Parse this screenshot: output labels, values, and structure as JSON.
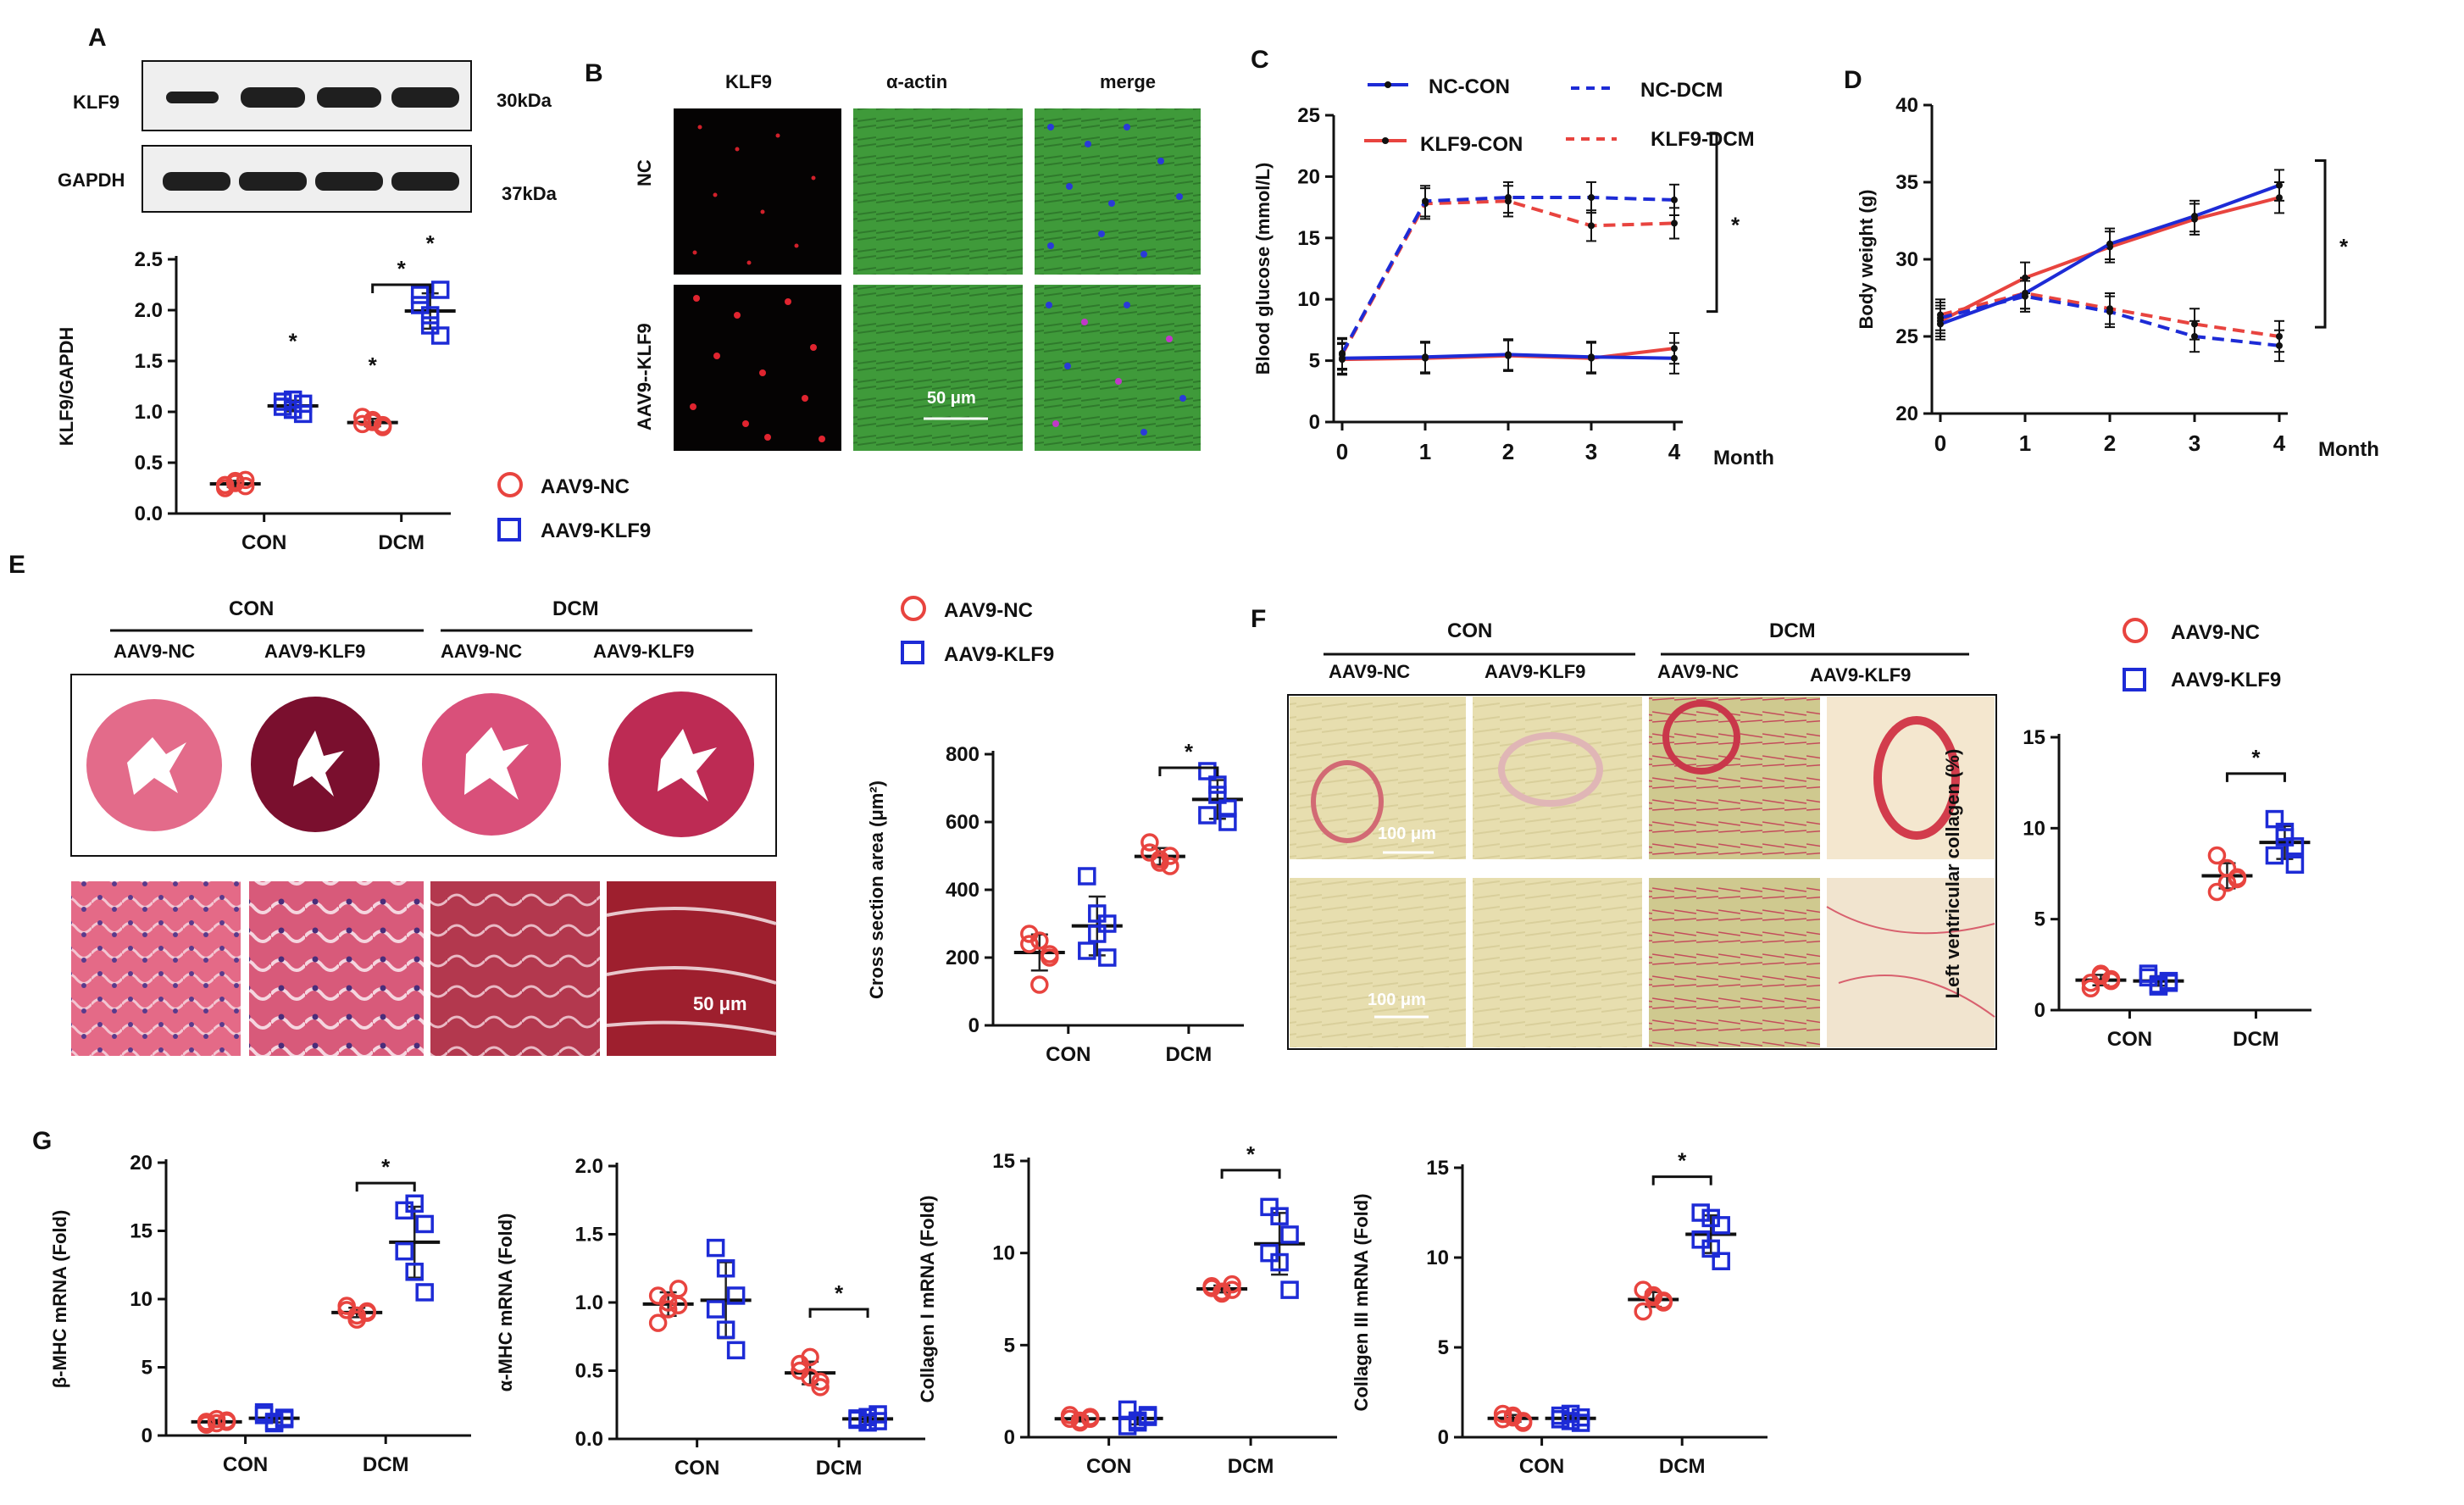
{
  "figure": {
    "colors": {
      "nc": "#e8443f",
      "klf9": "#1d2bd6",
      "axis": "#111111",
      "he_pink": "#e05c7c",
      "he_dark": "#8a1233",
      "if_green": "#3c9c3a",
      "sr_bg": "#e8dfae",
      "sr_red": "#d23c4c"
    },
    "panel_letters": {
      "a": "A",
      "b": "B",
      "c": "C",
      "d": "D",
      "e": "E",
      "f": "F",
      "g": "G"
    },
    "legend": {
      "nc": "AAV9-NC",
      "klf9": "AAV9-KLF9"
    },
    "star": "*",
    "blot": {
      "rows": [
        {
          "label": "KLF9",
          "kda": "30kDa"
        },
        {
          "label": "GAPDH",
          "kda": "37kDa"
        }
      ]
    },
    "if_panel": {
      "cols": [
        "KLF9",
        "α-actin",
        "merge"
      ],
      "rows": [
        "NC",
        "AAV9--KLF9"
      ],
      "scale": "50 μm"
    },
    "he_panel": {
      "group_labels": [
        "CON",
        "DCM"
      ],
      "sub_labels": [
        "AAV9-NC",
        "AAV9-KLF9",
        "AAV9-NC",
        "AAV9-KLF9"
      ],
      "scale": "50 μm"
    },
    "sr_panel": {
      "group_labels": [
        "CON",
        "DCM"
      ],
      "sub_labels": [
        "AAV9-NC",
        "AAV9-KLF9",
        "AAV9-NC",
        "AAV9-KLF9"
      ],
      "scale": "100 μm"
    }
  },
  "chart_data": [
    {
      "id": "A",
      "type": "scatter",
      "ylabel": "KLF9/GAPDH",
      "ylim": [
        0,
        2.5
      ],
      "yticks": [
        "0.0",
        "0.5",
        "1.0",
        "1.5",
        "2.0",
        "2.5"
      ],
      "categories": [
        "CON",
        "DCM"
      ],
      "series": [
        {
          "name": "AAV9-NC",
          "values": [
            [
              0.25,
              0.3,
              0.33,
              0.28,
              0.32,
              0.27
            ],
            [
              0.88,
              0.92,
              0.85,
              0.95,
              0.9,
              0.87
            ]
          ]
        },
        {
          "name": "AAV9-KLF9",
          "values": [
            [
              1.05,
              1.12,
              0.98,
              1.1,
              1.02,
              1.08
            ],
            [
              2.15,
              1.95,
              1.75,
              2.05,
              1.85,
              2.2
            ]
          ]
        }
      ]
    },
    {
      "id": "C",
      "type": "line",
      "ylabel": "Blood glucose (mmol/L)",
      "xlabel": "Month",
      "x": [
        0,
        1,
        2,
        3,
        4
      ],
      "ylim": [
        0,
        25
      ],
      "yticks": [
        "0",
        "5",
        "10",
        "15",
        "20",
        "25"
      ],
      "series": [
        {
          "name": "NC-CON",
          "values": [
            5.2,
            5.3,
            5.5,
            5.3,
            5.2
          ]
        },
        {
          "name": "NC-DCM",
          "values": [
            5.6,
            18.0,
            18.3,
            18.3,
            18.1
          ]
        },
        {
          "name": "KLF9-CON",
          "values": [
            5.1,
            5.2,
            5.4,
            5.2,
            6.0
          ]
        },
        {
          "name": "KLF9-DCM",
          "values": [
            5.5,
            17.8,
            18.0,
            16.0,
            16.2
          ]
        }
      ]
    },
    {
      "id": "D",
      "type": "line",
      "ylabel": "Body weight (g)",
      "xlabel": "Month",
      "x": [
        0,
        1,
        2,
        3,
        4
      ],
      "ylim": [
        20,
        40
      ],
      "yticks": [
        "20",
        "25",
        "30",
        "35",
        "40"
      ],
      "series": [
        {
          "name": "NC-CON",
          "values": [
            25.8,
            27.8,
            31.0,
            32.8,
            34.8
          ]
        },
        {
          "name": "NC-DCM",
          "values": [
            26.2,
            27.6,
            26.6,
            25.0,
            24.4
          ]
        },
        {
          "name": "KLF9-CON",
          "values": [
            26.0,
            28.8,
            30.8,
            32.6,
            34.0
          ]
        },
        {
          "name": "KLF9-DCM",
          "values": [
            26.4,
            27.8,
            26.8,
            25.8,
            25.0
          ]
        }
      ]
    },
    {
      "id": "E",
      "type": "scatter",
      "ylabel": "Cross section area (μm²)",
      "ylim": [
        0,
        800
      ],
      "yticks": [
        "0",
        "200",
        "400",
        "600",
        "800"
      ],
      "categories": [
        "CON",
        "DCM"
      ],
      "series": [
        {
          "name": "AAV9-NC",
          "values": [
            [
              270,
              250,
              200,
              240,
              120,
              210
            ],
            [
              540,
              490,
              470,
              510,
              480,
              500
            ]
          ]
        },
        {
          "name": "AAV9-KLF9",
          "values": [
            [
              440,
              330,
              300,
              220,
              270,
              200
            ],
            [
              750,
              710,
              640,
              620,
              680,
              600
            ]
          ]
        }
      ]
    },
    {
      "id": "F",
      "type": "scatter",
      "ylabel": "Left ventricular collagen (%)",
      "ylim": [
        0,
        15
      ],
      "yticks": [
        "0",
        "5",
        "10",
        "15"
      ],
      "categories": [
        "CON",
        "DCM"
      ],
      "series": [
        {
          "name": "AAV9-NC",
          "values": [
            [
              1.5,
              2.0,
              1.6,
              1.2,
              1.9,
              1.7
            ],
            [
              8.5,
              7.8,
              7.2,
              6.5,
              7.0,
              7.3
            ]
          ]
        },
        {
          "name": "AAV9-KLF9",
          "values": [
            [
              1.8,
              1.4,
              1.6,
              2.0,
              1.3,
              1.5
            ],
            [
              10.5,
              9.8,
              9.0,
              8.5,
              9.5,
              8.0
            ]
          ]
        }
      ]
    },
    {
      "id": "G1",
      "type": "scatter",
      "ylabel": "β-MHC mRNA (Fold)",
      "ylim": [
        0,
        20
      ],
      "yticks": [
        "0",
        "5",
        "10",
        "15",
        "20"
      ],
      "categories": [
        "CON",
        "DCM"
      ],
      "series": [
        {
          "name": "AAV9-NC",
          "values": [
            [
              1.0,
              0.9,
              1.1,
              0.8,
              1.2,
              1.0
            ],
            [
              9.5,
              8.5,
              9.0,
              9.2,
              8.8,
              9.1
            ]
          ]
        },
        {
          "name": "AAV9-KLF9",
          "values": [
            [
              1.5,
              1.0,
              1.3,
              1.7,
              0.9,
              1.2
            ],
            [
              16.5,
              17.0,
              15.5,
              13.5,
              12.0,
              10.5
            ]
          ]
        }
      ]
    },
    {
      "id": "G2",
      "type": "scatter",
      "ylabel": "α-MHC mRNA (Fold)",
      "ylim": [
        0,
        2.0
      ],
      "yticks": [
        "0.0",
        "0.5",
        "1.0",
        "1.5",
        "2.0"
      ],
      "categories": [
        "CON",
        "DCM"
      ],
      "series": [
        {
          "name": "AAV9-NC",
          "values": [
            [
              1.05,
              0.95,
              1.1,
              0.85,
              1.0,
              0.98
            ],
            [
              0.55,
              0.45,
              0.38,
              0.5,
              0.6,
              0.42
            ]
          ]
        },
        {
          "name": "AAV9-KLF9",
          "values": [
            [
              1.4,
              1.25,
              1.05,
              0.95,
              0.8,
              0.65
            ],
            [
              0.15,
              0.12,
              0.18,
              0.14,
              0.16,
              0.13
            ]
          ]
        }
      ]
    },
    {
      "id": "G3",
      "type": "scatter",
      "ylabel": "Collagen I mRNA (Fold)",
      "ylim": [
        0,
        15
      ],
      "yticks": [
        "0",
        "5",
        "10",
        "15"
      ],
      "categories": [
        "CON",
        "DCM"
      ],
      "series": [
        {
          "name": "AAV9-NC",
          "values": [
            [
              1.0,
              0.9,
              1.1,
              1.2,
              0.8,
              1.0
            ],
            [
              8.2,
              7.9,
              8.0,
              8.1,
              7.8,
              8.3
            ]
          ]
        },
        {
          "name": "AAV9-KLF9",
          "values": [
            [
              1.5,
              0.9,
              1.2,
              0.6,
              0.8,
              1.1
            ],
            [
              12.5,
              12.0,
              11.0,
              10.0,
              9.5,
              8.0
            ]
          ]
        }
      ]
    },
    {
      "id": "G4",
      "type": "scatter",
      "ylabel": "Collagen III mRNA (Fold)",
      "ylim": [
        0,
        15
      ],
      "yticks": [
        "0",
        "5",
        "10",
        "15"
      ],
      "categories": [
        "CON",
        "DCM"
      ],
      "series": [
        {
          "name": "AAV9-NC",
          "values": [
            [
              1.0,
              1.2,
              0.9,
              1.3,
              1.1,
              0.8
            ],
            [
              8.2,
              7.8,
              7.5,
              7.0,
              7.9,
              7.6
            ]
          ]
        },
        {
          "name": "AAV9-KLF9",
          "values": [
            [
              1.0,
              1.3,
              0.8,
              1.2,
              0.9,
              1.1
            ],
            [
              12.5,
              12.2,
              11.8,
              11.0,
              10.5,
              9.8
            ]
          ]
        }
      ]
    }
  ]
}
